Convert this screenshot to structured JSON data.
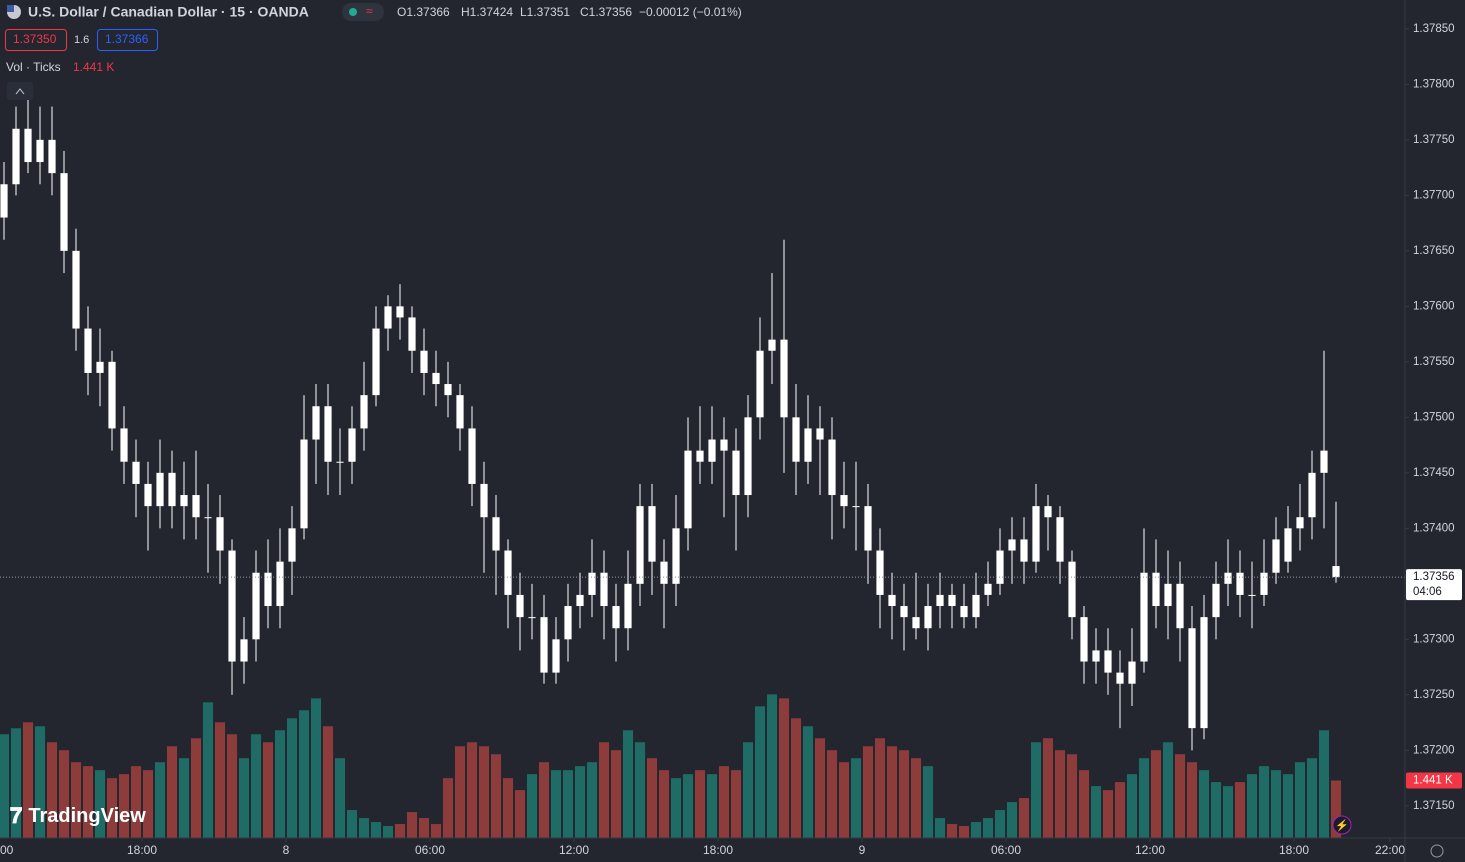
{
  "header": {
    "symbol": "U.S. Dollar / Canadian Dollar · 15 · OANDA",
    "open": "O1.37366",
    "high": "H1.37424",
    "low": "L1.37351",
    "close": "C1.37356",
    "change": "−0.00012 (−0.01%)"
  },
  "bid_ask": {
    "bid": "1.37350",
    "spread": "1.6",
    "ask": "1.37366"
  },
  "volume_legend": "Vol · Ticks",
  "watermark": "TradingView",
  "chart_data": {
    "type": "candlestick",
    "up_color": "#ffffff",
    "down_color": "#ffffff",
    "volume_up_color": "#1f6b65",
    "volume_down_color": "#8e3b3b",
    "ylim": [
      1.37121,
      1.37876
    ],
    "yticks": [
      {
        "value": 1.3785,
        "label": "1.37850"
      },
      {
        "value": 1.378,
        "label": "1.37800"
      },
      {
        "value": 1.3775,
        "label": "1.37750"
      },
      {
        "value": 1.377,
        "label": "1.37700"
      },
      {
        "value": 1.3765,
        "label": "1.37650"
      },
      {
        "value": 1.376,
        "label": "1.37600"
      },
      {
        "value": 1.3755,
        "label": "1.37550"
      },
      {
        "value": 1.375,
        "label": "1.37500"
      },
      {
        "value": 1.3745,
        "label": "1.37450"
      },
      {
        "value": 1.374,
        "label": "1.37400"
      },
      {
        "value": 1.3735,
        "label": "1.37350"
      },
      {
        "value": 1.373,
        "label": "1.37300"
      },
      {
        "value": 1.3725,
        "label": "1.37250"
      },
      {
        "value": 1.372,
        "label": "1.37200"
      },
      {
        "value": 1.3715,
        "label": "1.37150"
      }
    ],
    "xlim": [
      0.083,
      58.625
    ],
    "xticks": [
      {
        "value": 0,
        "label": "00"
      },
      {
        "value": 6,
        "label": "18:00"
      },
      {
        "value": 12,
        "label": "8"
      },
      {
        "value": 18,
        "label": "06:00"
      },
      {
        "value": 24,
        "label": "12:00"
      },
      {
        "value": 30,
        "label": "18:00"
      },
      {
        "value": 36,
        "label": "9"
      },
      {
        "value": 42,
        "label": "06:00"
      },
      {
        "value": 48,
        "label": "12:00"
      },
      {
        "value": 54,
        "label": "18:00"
      },
      {
        "value": 58,
        "label": "22:00"
      }
    ],
    "volume_ylim": [
      0,
      21000
    ],
    "last_price": 1.37356,
    "countdown": "04:06",
    "last_volume_label": "1.441 K",
    "candles": [
      [
        1.3768,
        1.3773,
        1.3766,
        1.3771
      ],
      [
        1.3771,
        1.3778,
        1.377,
        1.3776
      ],
      [
        1.3776,
        1.3779,
        1.3772,
        1.3773
      ],
      [
        1.3773,
        1.3778,
        1.3771,
        1.3775
      ],
      [
        1.3775,
        1.3778,
        1.377,
        1.3772
      ],
      [
        1.3772,
        1.3774,
        1.3763,
        1.3765
      ],
      [
        1.3765,
        1.3767,
        1.3756,
        1.3758
      ],
      [
        1.3758,
        1.376,
        1.3752,
        1.3754
      ],
      [
        1.3754,
        1.3758,
        1.3751,
        1.3755
      ],
      [
        1.3755,
        1.3756,
        1.3747,
        1.3749
      ],
      [
        1.3749,
        1.3751,
        1.3744,
        1.3746
      ],
      [
        1.3746,
        1.3748,
        1.3741,
        1.3744
      ],
      [
        1.3744,
        1.3746,
        1.3738,
        1.3742
      ],
      [
        1.3742,
        1.3748,
        1.374,
        1.3745
      ],
      [
        1.3745,
        1.3747,
        1.374,
        1.3742
      ],
      [
        1.3742,
        1.3746,
        1.3739,
        1.3743
      ],
      [
        1.3743,
        1.3747,
        1.3739,
        1.3741
      ],
      [
        1.3741,
        1.3744,
        1.3736,
        1.3741
      ],
      [
        1.3741,
        1.3743,
        1.3735,
        1.3738
      ],
      [
        1.3738,
        1.3739,
        1.3725,
        1.3728
      ],
      [
        1.3728,
        1.3732,
        1.3726,
        1.373
      ],
      [
        1.373,
        1.3738,
        1.3728,
        1.3736
      ],
      [
        1.3736,
        1.3739,
        1.3731,
        1.3733
      ],
      [
        1.3733,
        1.374,
        1.3731,
        1.3737
      ],
      [
        1.3737,
        1.3742,
        1.3734,
        1.374
      ],
      [
        1.374,
        1.3752,
        1.3739,
        1.3748
      ],
      [
        1.3748,
        1.3753,
        1.3744,
        1.3751
      ],
      [
        1.3751,
        1.3753,
        1.3743,
        1.3746
      ],
      [
        1.3746,
        1.3749,
        1.3743,
        1.3746
      ],
      [
        1.3746,
        1.3751,
        1.3744,
        1.3749
      ],
      [
        1.3749,
        1.3755,
        1.3747,
        1.3752
      ],
      [
        1.3752,
        1.376,
        1.3751,
        1.3758
      ],
      [
        1.3758,
        1.3761,
        1.3756,
        1.376
      ],
      [
        1.376,
        1.3762,
        1.3757,
        1.3759
      ],
      [
        1.3759,
        1.376,
        1.3754,
        1.3756
      ],
      [
        1.3756,
        1.3758,
        1.3752,
        1.3754
      ],
      [
        1.3754,
        1.3756,
        1.3751,
        1.3753
      ],
      [
        1.3753,
        1.3755,
        1.375,
        1.3752
      ],
      [
        1.3752,
        1.3753,
        1.3747,
        1.3749
      ],
      [
        1.3749,
        1.3751,
        1.3742,
        1.3744
      ],
      [
        1.3744,
        1.3746,
        1.3736,
        1.3741
      ],
      [
        1.3741,
        1.3743,
        1.3734,
        1.3738
      ],
      [
        1.3738,
        1.3739,
        1.3731,
        1.3734
      ],
      [
        1.3734,
        1.3736,
        1.3729,
        1.3732
      ],
      [
        1.3732,
        1.3735,
        1.373,
        1.3732
      ],
      [
        1.3732,
        1.3734,
        1.3726,
        1.3727
      ],
      [
        1.3727,
        1.3732,
        1.3726,
        1.373
      ],
      [
        1.373,
        1.3735,
        1.3728,
        1.3733
      ],
      [
        1.3733,
        1.3736,
        1.3731,
        1.3734
      ],
      [
        1.3734,
        1.3739,
        1.3732,
        1.3736
      ],
      [
        1.3736,
        1.3738,
        1.373,
        1.3733
      ],
      [
        1.3733,
        1.3735,
        1.3728,
        1.3731
      ],
      [
        1.3731,
        1.3738,
        1.3729,
        1.3735
      ],
      [
        1.3735,
        1.3744,
        1.3733,
        1.3742
      ],
      [
        1.3742,
        1.3744,
        1.3734,
        1.3737
      ],
      [
        1.3737,
        1.3739,
        1.3731,
        1.3735
      ],
      [
        1.3735,
        1.3743,
        1.3733,
        1.374
      ],
      [
        1.374,
        1.375,
        1.3738,
        1.3747
      ],
      [
        1.3747,
        1.3751,
        1.3744,
        1.3746
      ],
      [
        1.3746,
        1.3751,
        1.3744,
        1.3748
      ],
      [
        1.3748,
        1.375,
        1.3741,
        1.3747
      ],
      [
        1.3747,
        1.3749,
        1.3738,
        1.3743
      ],
      [
        1.3743,
        1.3752,
        1.3741,
        1.375
      ],
      [
        1.375,
        1.3759,
        1.3748,
        1.3756
      ],
      [
        1.3756,
        1.3763,
        1.3753,
        1.3757
      ],
      [
        1.3757,
        1.3766,
        1.3745,
        1.375
      ],
      [
        1.375,
        1.3753,
        1.3743,
        1.3746
      ],
      [
        1.3746,
        1.3752,
        1.3744,
        1.3749
      ],
      [
        1.3749,
        1.3751,
        1.3743,
        1.3748
      ],
      [
        1.3748,
        1.375,
        1.3739,
        1.3743
      ],
      [
        1.3743,
        1.3746,
        1.374,
        1.3742
      ],
      [
        1.3742,
        1.3746,
        1.3738,
        1.3742
      ],
      [
        1.3742,
        1.3744,
        1.3735,
        1.3738
      ],
      [
        1.3738,
        1.374,
        1.3731,
        1.3734
      ],
      [
        1.3734,
        1.3736,
        1.373,
        1.3733
      ],
      [
        1.3733,
        1.3735,
        1.3729,
        1.3732
      ],
      [
        1.3732,
        1.3736,
        1.373,
        1.3731
      ],
      [
        1.3731,
        1.3735,
        1.3729,
        1.3733
      ],
      [
        1.3733,
        1.3736,
        1.3731,
        1.3734
      ],
      [
        1.3734,
        1.3735,
        1.3731,
        1.3733
      ],
      [
        1.3733,
        1.3735,
        1.3731,
        1.3732
      ],
      [
        1.3732,
        1.3736,
        1.3731,
        1.3734
      ],
      [
        1.3734,
        1.3737,
        1.3733,
        1.3735
      ],
      [
        1.3735,
        1.374,
        1.3734,
        1.3738
      ],
      [
        1.3738,
        1.3741,
        1.3735,
        1.3739
      ],
      [
        1.3739,
        1.3741,
        1.3735,
        1.3737
      ],
      [
        1.3737,
        1.3744,
        1.3736,
        1.3742
      ],
      [
        1.3742,
        1.3743,
        1.3738,
        1.3741
      ],
      [
        1.3741,
        1.3742,
        1.3735,
        1.3737
      ],
      [
        1.3737,
        1.3738,
        1.373,
        1.3732
      ],
      [
        1.3732,
        1.3733,
        1.3726,
        1.3728
      ],
      [
        1.3728,
        1.3731,
        1.3726,
        1.3729
      ],
      [
        1.3729,
        1.3731,
        1.3725,
        1.3727
      ],
      [
        1.3727,
        1.3729,
        1.3722,
        1.3726
      ],
      [
        1.3726,
        1.3731,
        1.3724,
        1.3728
      ],
      [
        1.3728,
        1.374,
        1.3727,
        1.3736
      ],
      [
        1.3736,
        1.3739,
        1.3731,
        1.3733
      ],
      [
        1.3733,
        1.3738,
        1.373,
        1.3735
      ],
      [
        1.3735,
        1.3737,
        1.3728,
        1.3731
      ],
      [
        1.3731,
        1.3733,
        1.372,
        1.3722
      ],
      [
        1.3722,
        1.3734,
        1.3721,
        1.3732
      ],
      [
        1.3732,
        1.3737,
        1.373,
        1.3735
      ],
      [
        1.3735,
        1.3739,
        1.3733,
        1.3736
      ],
      [
        1.3736,
        1.3738,
        1.3732,
        1.3734
      ],
      [
        1.3734,
        1.3737,
        1.3731,
        1.3734
      ],
      [
        1.3734,
        1.3739,
        1.3733,
        1.3736
      ],
      [
        1.3736,
        1.3741,
        1.3735,
        1.3739
      ],
      [
        1.3737,
        1.3742,
        1.3736,
        1.374
      ],
      [
        1.374,
        1.3744,
        1.3738,
        1.3741
      ],
      [
        1.3741,
        1.3747,
        1.3739,
        1.3745
      ],
      [
        1.3745,
        1.3756,
        1.374,
        1.3747
      ],
      [
        1.37366,
        1.37424,
        1.37351,
        1.37356
      ]
    ],
    "volume": [
      2600,
      2750,
      2900,
      2800,
      2400,
      2200,
      1900,
      1800,
      1700,
      1500,
      1600,
      1800,
      1700,
      1900,
      2300,
      2000,
      2500,
      3400,
      2900,
      2600,
      2000,
      2600,
      2400,
      2700,
      3000,
      3200,
      3500,
      2800,
      2000,
      700,
      500,
      400,
      300,
      350,
      650,
      500,
      350,
      1500,
      2300,
      2400,
      2300,
      2100,
      1500,
      1200,
      1600,
      1900,
      1700,
      1700,
      1800,
      1900,
      2400,
      2200,
      2700,
      2400,
      2000,
      1700,
      1500,
      1600,
      1700,
      1600,
      1800,
      1700,
      2400,
      3300,
      3600,
      3500,
      3000,
      2800,
      2500,
      2200,
      1900,
      2000,
      2300,
      2500,
      2300,
      2200,
      2000,
      1800,
      500,
      350,
      300,
      400,
      500,
      700,
      900,
      1000,
      2400,
      2500,
      2200,
      2100,
      1700,
      1300,
      1200,
      1400,
      1600,
      2000,
      2200,
      2400,
      2100,
      1900,
      1700,
      1400,
      1300,
      1400,
      1600,
      1800,
      1700,
      1600,
      1900,
      2000,
      2700,
      1441
    ]
  }
}
